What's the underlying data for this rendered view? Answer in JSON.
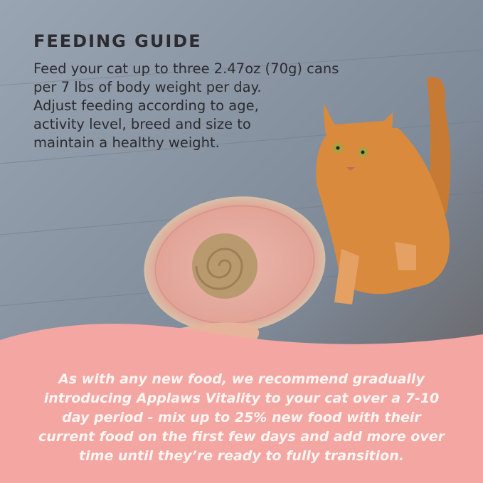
{
  "heading": "FEEDING GUIDE",
  "guide_lines": [
    "Feed your cat up to three 2.47oz (70g) cans",
    "per 7 lbs of body weight per day.",
    "Adjust feeding according to age,",
    "activity level, breed and size to",
    "maintain a healthy weight."
  ],
  "notice_lines": [
    "As with any new food, we recommend gradually",
    "introducing Applaws Vitality to your cat over a 7-10",
    "day period - mix up to 25% new food with their",
    "current food on the first few days and add more over",
    "time until they’re ready to fully transition."
  ],
  "colors": {
    "banner": "#f4a6a3",
    "floor": "#8a96a6",
    "text_dark": "#2b2b30",
    "plate": "#e8b1a8",
    "cat": "#d98a3c"
  }
}
